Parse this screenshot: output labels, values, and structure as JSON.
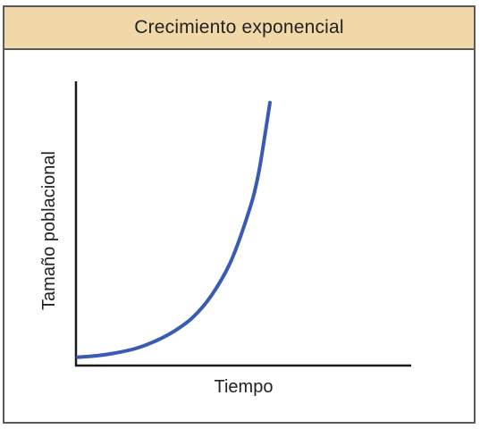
{
  "header": {
    "title": "Crecimiento exponencial"
  },
  "colors": {
    "header_background": "#f1d8a8",
    "curve": "#3a5bb3",
    "axis": "#1a1a1a",
    "border": "#5a5a5a"
  },
  "chart_data": {
    "type": "line",
    "title": "Crecimiento exponencial",
    "xlabel": "Tiempo",
    "ylabel": "Tamaño poblacional",
    "xticks": [],
    "yticks": [],
    "grid": false,
    "legend": "none",
    "xlim": [
      0,
      1
    ],
    "ylim": [
      0,
      1
    ],
    "series": [
      {
        "x": [
          0.0,
          0.1,
          0.2,
          0.3,
          0.4,
          0.5,
          0.6,
          0.7,
          0.8,
          0.9,
          0.94,
          0.97,
          1.0
        ],
        "y": [
          0.02,
          0.025,
          0.035,
          0.05,
          0.075,
          0.11,
          0.16,
          0.24,
          0.36,
          0.55,
          0.66,
          0.78,
          0.91
        ]
      }
    ]
  }
}
